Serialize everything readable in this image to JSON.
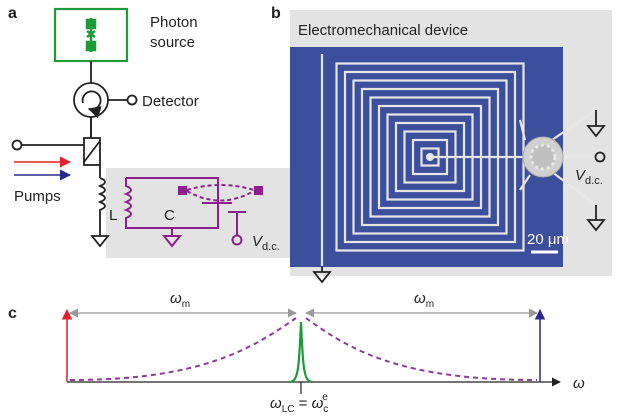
{
  "panel_a": {
    "label": "a",
    "photon_source": [
      "Photon",
      "source"
    ],
    "detector": "Detector",
    "pumps": "Pumps",
    "inductor": "L",
    "capacitor": "C",
    "voltage": {
      "main": "V",
      "sub": "d.c."
    }
  },
  "panel_b": {
    "label": "b",
    "title": "Electromechanical device",
    "scale_bar": "20 μm",
    "voltage": {
      "main": "V",
      "sub": "d.c."
    }
  },
  "panel_c": {
    "label": "c",
    "spacing_left": {
      "main": "ω",
      "sub": "m"
    },
    "spacing_right": {
      "main": "ω",
      "sub": "m"
    },
    "axis": "ω",
    "resonance": {
      "lhs": "ω",
      "lhs_sub": "LC",
      "eq": " = ",
      "rhs": "ω",
      "rhs_sub": "c",
      "rhs_sup": "e"
    }
  }
}
